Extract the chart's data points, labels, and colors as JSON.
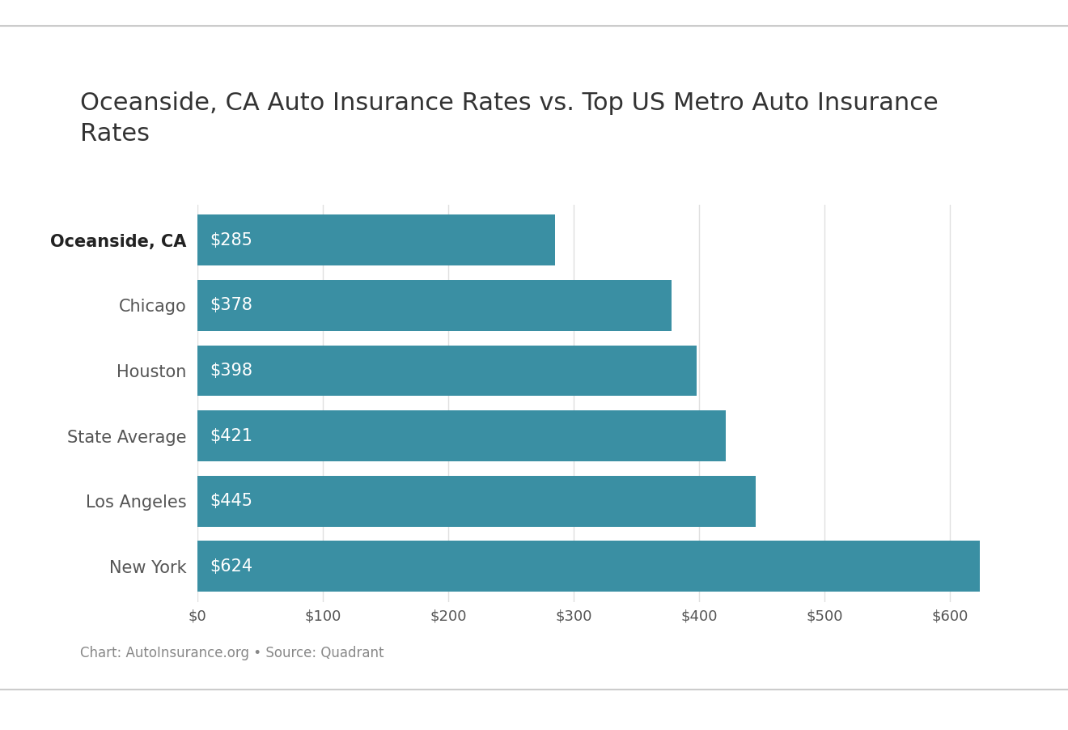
{
  "title": "Oceanside, CA Auto Insurance Rates vs. Top US Metro Auto Insurance\nRates",
  "categories": [
    "Oceanside, CA",
    "Chicago",
    "Houston",
    "State Average",
    "Los Angeles",
    "New York"
  ],
  "values": [
    285,
    378,
    398,
    421,
    445,
    624
  ],
  "bar_color": "#3a8fa3",
  "label_color": "#ffffff",
  "bar_labels": [
    "$285",
    "$378",
    "$398",
    "$421",
    "$445",
    "$624"
  ],
  "bold_label_index": 0,
  "xlim": [
    0,
    660
  ],
  "xtick_values": [
    0,
    100,
    200,
    300,
    400,
    500,
    600
  ],
  "xtick_labels": [
    "$0",
    "$100",
    "$200",
    "$300",
    "$400",
    "$500",
    "$600"
  ],
  "caption": "Chart: AutoInsurance.org • Source: Quadrant",
  "background_color": "#ffffff",
  "title_fontsize": 22,
  "label_fontsize": 15,
  "tick_fontsize": 13,
  "caption_fontsize": 12,
  "bar_height": 0.78,
  "top_line_color": "#cccccc",
  "bottom_line_color": "#cccccc",
  "title_color": "#333333",
  "tick_color": "#555555",
  "caption_color": "#888888",
  "ytick_fontsize": 15,
  "grid_color": "#e0e0e0"
}
